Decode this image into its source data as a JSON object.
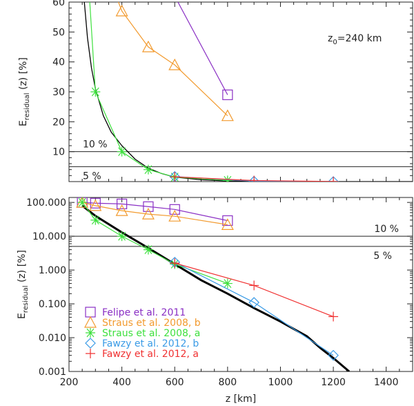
{
  "chart_data": [
    {
      "type": "line",
      "panel": "top",
      "ylabel_main": "E",
      "ylabel_sub": "residual",
      "ylabel_rest": " (z) [%]",
      "xlim": [
        200,
        1500
      ],
      "ylim": [
        0,
        60
      ],
      "yscale": "linear",
      "yticks": [
        10,
        20,
        30,
        40,
        50,
        60
      ],
      "annotation": {
        "main": "z",
        "sub": "0",
        "rest": "=240 km"
      },
      "hlines": [
        {
          "y": 10,
          "label": "10 %"
        },
        {
          "y": 5,
          "label": "5 %"
        }
      ],
      "model_curve": {
        "x": [
          258,
          270,
          285,
          300,
          330,
          360,
          400,
          450,
          500,
          550,
          600,
          700,
          800,
          1000,
          1200,
          1500
        ],
        "y": [
          60,
          48,
          38,
          31,
          22,
          16.5,
          12,
          7.5,
          4.5,
          2.7,
          1.5,
          0.6,
          0.2,
          0.03,
          0.003,
          0.0001
        ]
      },
      "series_ref": "shared"
    },
    {
      "type": "line",
      "panel": "bottom",
      "xlabel": "z [km]",
      "ylabel_main": "E",
      "ylabel_sub": "residual",
      "ylabel_rest": " (z) [%]",
      "xlim": [
        200,
        1500
      ],
      "ylim": [
        0.001,
        140
      ],
      "yscale": "log",
      "xticks": [
        200,
        400,
        600,
        800,
        1000,
        1200,
        1400
      ],
      "ytick_labels": [
        "100.000",
        "10.000",
        "1.000",
        "0.100",
        "0.010",
        "0.001"
      ],
      "yticks": [
        100,
        10,
        1,
        0.1,
        0.01,
        0.001
      ],
      "hlines": [
        {
          "y": 10,
          "label": "10 %"
        },
        {
          "y": 5,
          "label": "5 %"
        }
      ],
      "legend_position": "bottom-left",
      "model_curve": {
        "x": [
          250,
          300,
          400,
          500,
          600,
          700,
          800,
          900,
          1000,
          1100,
          1150,
          1200,
          1260
        ],
        "y": [
          80,
          40,
          13,
          4.5,
          1.5,
          0.5,
          0.2,
          0.075,
          0.03,
          0.011,
          0.005,
          0.0025,
          0.001
        ]
      }
    }
  ],
  "series": [
    {
      "name": "Felipe et al. 2011",
      "color": "#8a2fc4",
      "marker": "square",
      "x": [
        250,
        300,
        400,
        500,
        600,
        800
      ],
      "y": [
        100,
        95,
        90,
        75,
        62,
        29
      ]
    },
    {
      "name": "Straus et al. 2008, b",
      "color": "#f29a2e",
      "marker": "triangle",
      "x": [
        250,
        300,
        400,
        500,
        600,
        800
      ],
      "y": [
        100,
        80,
        57,
        45,
        39,
        22
      ]
    },
    {
      "name": "Straus et al. 2008, a",
      "color": "#3ee03e",
      "marker": "asterisk",
      "x": [
        250,
        300,
        400,
        500,
        600,
        800
      ],
      "y": [
        100,
        30,
        10,
        4,
        1.5,
        0.4
      ]
    },
    {
      "name": "Fawzy et al. 2012, b",
      "color": "#3a9be6",
      "marker": "diamond",
      "x": [
        600,
        900,
        1200
      ],
      "y": [
        1.7,
        0.11,
        0.003
      ]
    },
    {
      "name": "Fawzy et al. 2012, a",
      "color": "#f03030",
      "marker": "plus",
      "x": [
        600,
        900,
        1200
      ],
      "y": [
        1.6,
        0.35,
        0.042
      ]
    }
  ]
}
